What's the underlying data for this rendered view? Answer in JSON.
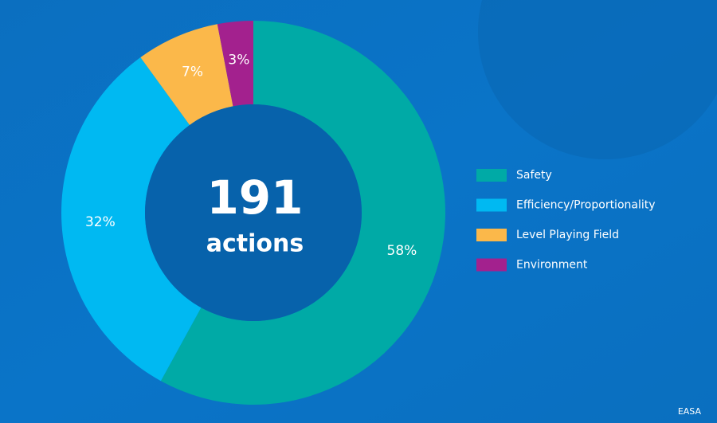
{
  "chart_data": {
    "type": "pie",
    "donut": true,
    "center_value": 191,
    "center_label": "actions",
    "categories": [
      "Safety",
      "Efficiency/Proportionality",
      "Level Playing Field",
      "Environment"
    ],
    "values": [
      58,
      32,
      7,
      3
    ],
    "value_labels": [
      "58%",
      "32%",
      "7%",
      "3%"
    ],
    "colors": [
      "#00aaa6",
      "#00b9f2",
      "#fbb84a",
      "#a3218e"
    ],
    "legend": "right",
    "source": "EASA"
  }
}
